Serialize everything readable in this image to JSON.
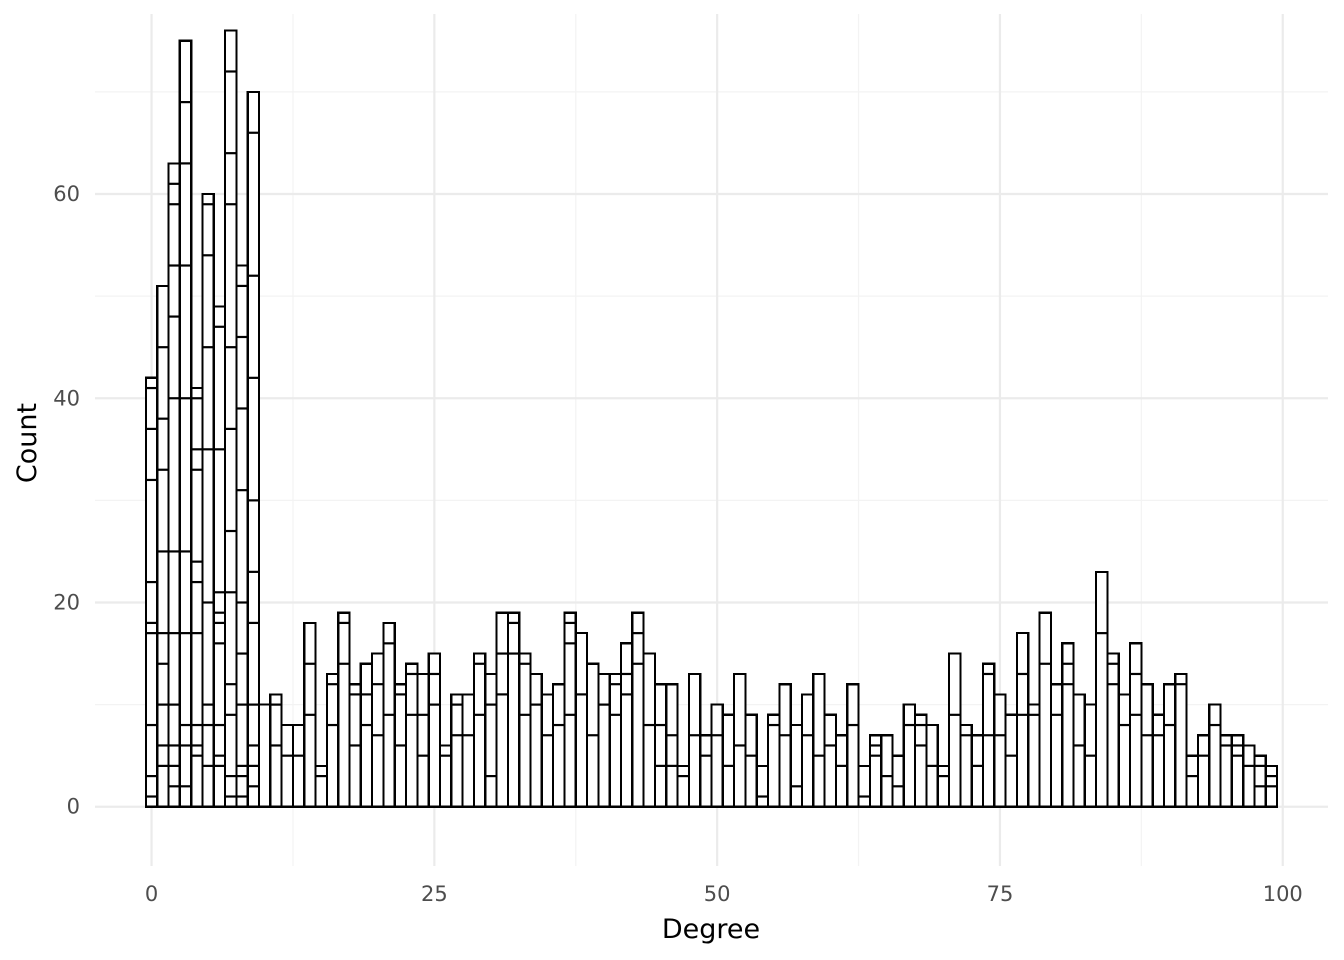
{
  "chart_data": {
    "type": "bar",
    "xlabel": "Degree",
    "ylabel": "Count",
    "x_ticks": [
      0,
      25,
      50,
      75,
      100
    ],
    "y_ticks": [
      0,
      20,
      40,
      60
    ],
    "xlim": [
      -5,
      104
    ],
    "ylim": [
      -6,
      79
    ],
    "grid": true,
    "bin_width": 1,
    "bars": [
      {
        "x": 0,
        "height": 42,
        "segments": [
          1,
          3,
          8,
          17,
          18,
          22,
          32,
          37,
          41
        ]
      },
      {
        "x": 1,
        "height": 51,
        "segments": [
          4,
          6,
          10,
          14,
          17,
          25,
          33,
          38,
          45
        ]
      },
      {
        "x": 2,
        "height": 63,
        "segments": [
          2,
          4,
          6,
          10,
          17,
          25,
          40,
          48,
          53,
          59,
          61
        ]
      },
      {
        "x": 3,
        "height": 75,
        "segments": [
          2,
          6,
          8,
          17,
          25,
          40,
          53,
          63,
          69
        ]
      },
      {
        "x": 4,
        "height": 41,
        "segments": [
          5,
          6,
          8,
          17,
          22,
          24,
          33,
          35,
          40
        ]
      },
      {
        "x": 5,
        "height": 60,
        "segments": [
          4,
          8,
          10,
          20,
          35,
          45,
          54,
          59
        ]
      },
      {
        "x": 6,
        "height": 49,
        "segments": [
          4,
          5,
          8,
          16,
          18,
          19,
          21,
          35,
          47
        ]
      },
      {
        "x": 7,
        "height": 76,
        "segments": [
          1,
          3,
          9,
          12,
          21,
          27,
          37,
          45,
          59,
          64,
          72
        ]
      },
      {
        "x": 8,
        "height": 53,
        "segments": [
          1,
          3,
          4,
          10,
          15,
          20,
          31,
          39,
          46,
          51
        ]
      },
      {
        "x": 9,
        "height": 70,
        "segments": [
          2,
          4,
          6,
          10,
          18,
          23,
          30,
          42,
          52,
          66
        ]
      },
      {
        "x": 10,
        "height": 10,
        "segments": []
      },
      {
        "x": 11,
        "height": 11,
        "segments": [
          6,
          10
        ]
      },
      {
        "x": 12,
        "height": 8,
        "segments": [
          5
        ]
      },
      {
        "x": 13,
        "height": 8,
        "segments": [
          5
        ]
      },
      {
        "x": 14,
        "height": 18,
        "segments": [
          9,
          14
        ]
      },
      {
        "x": 15,
        "height": 4,
        "segments": [
          3
        ]
      },
      {
        "x": 16,
        "height": 13,
        "segments": [
          8,
          12
        ]
      },
      {
        "x": 17,
        "height": 19,
        "segments": [
          14,
          18
        ]
      },
      {
        "x": 18,
        "height": 12,
        "segments": [
          6,
          11
        ]
      },
      {
        "x": 19,
        "height": 14,
        "segments": [
          8,
          11
        ]
      },
      {
        "x": 20,
        "height": 15,
        "segments": [
          7,
          12
        ]
      },
      {
        "x": 21,
        "height": 18,
        "segments": [
          9,
          16
        ]
      },
      {
        "x": 22,
        "height": 12,
        "segments": [
          6,
          11
        ]
      },
      {
        "x": 23,
        "height": 14,
        "segments": [
          9,
          13
        ]
      },
      {
        "x": 24,
        "height": 13,
        "segments": [
          5,
          9
        ]
      },
      {
        "x": 25,
        "height": 15,
        "segments": [
          10,
          13
        ]
      },
      {
        "x": 26,
        "height": 6,
        "segments": [
          5
        ]
      },
      {
        "x": 27,
        "height": 11,
        "segments": [
          7,
          10
        ]
      },
      {
        "x": 28,
        "height": 11,
        "segments": [
          7
        ]
      },
      {
        "x": 29,
        "height": 15,
        "segments": [
          9,
          14
        ]
      },
      {
        "x": 30,
        "height": 13,
        "segments": [
          3,
          10
        ]
      },
      {
        "x": 31,
        "height": 19,
        "segments": [
          11,
          15
        ]
      },
      {
        "x": 32,
        "height": 19,
        "segments": [
          15,
          18
        ]
      },
      {
        "x": 33,
        "height": 15,
        "segments": [
          9,
          14
        ]
      },
      {
        "x": 34,
        "height": 13,
        "segments": [
          10
        ]
      },
      {
        "x": 35,
        "height": 11,
        "segments": [
          7
        ]
      },
      {
        "x": 36,
        "height": 12,
        "segments": [
          8
        ]
      },
      {
        "x": 37,
        "height": 19,
        "segments": [
          9,
          16,
          18
        ]
      },
      {
        "x": 38,
        "height": 17,
        "segments": [
          11
        ]
      },
      {
        "x": 39,
        "height": 14,
        "segments": [
          7
        ]
      },
      {
        "x": 40,
        "height": 13,
        "segments": [
          10
        ]
      },
      {
        "x": 41,
        "height": 13,
        "segments": [
          9,
          12
        ]
      },
      {
        "x": 42,
        "height": 16,
        "segments": [
          11,
          13
        ]
      },
      {
        "x": 43,
        "height": 19,
        "segments": [
          14,
          17
        ]
      },
      {
        "x": 44,
        "height": 15,
        "segments": [
          8
        ]
      },
      {
        "x": 45,
        "height": 12,
        "segments": [
          4,
          8
        ]
      },
      {
        "x": 46,
        "height": 12,
        "segments": [
          4,
          7
        ]
      },
      {
        "x": 47,
        "height": 4,
        "segments": [
          3
        ]
      },
      {
        "x": 48,
        "height": 13,
        "segments": [
          7
        ]
      },
      {
        "x": 49,
        "height": 7,
        "segments": [
          5
        ]
      },
      {
        "x": 50,
        "height": 10,
        "segments": [
          7
        ]
      },
      {
        "x": 51,
        "height": 9,
        "segments": [
          4
        ]
      },
      {
        "x": 52,
        "height": 13,
        "segments": [
          6
        ]
      },
      {
        "x": 53,
        "height": 9,
        "segments": [
          5
        ]
      },
      {
        "x": 54,
        "height": 4,
        "segments": [
          1
        ]
      },
      {
        "x": 55,
        "height": 9,
        "segments": [
          8
        ]
      },
      {
        "x": 56,
        "height": 12,
        "segments": [
          7
        ]
      },
      {
        "x": 57,
        "height": 8,
        "segments": [
          2
        ]
      },
      {
        "x": 58,
        "height": 11,
        "segments": [
          7
        ]
      },
      {
        "x": 59,
        "height": 13,
        "segments": [
          5
        ]
      },
      {
        "x": 60,
        "height": 9,
        "segments": [
          6
        ]
      },
      {
        "x": 61,
        "height": 7,
        "segments": [
          4
        ]
      },
      {
        "x": 62,
        "height": 12,
        "segments": [
          8
        ]
      },
      {
        "x": 63,
        "height": 4,
        "segments": [
          1
        ]
      },
      {
        "x": 64,
        "height": 7,
        "segments": [
          5,
          6
        ]
      },
      {
        "x": 65,
        "height": 7,
        "segments": [
          3
        ]
      },
      {
        "x": 66,
        "height": 5,
        "segments": [
          2
        ]
      },
      {
        "x": 67,
        "height": 10,
        "segments": [
          8
        ]
      },
      {
        "x": 68,
        "height": 9,
        "segments": [
          6,
          8
        ]
      },
      {
        "x": 69,
        "height": 8,
        "segments": [
          4
        ]
      },
      {
        "x": 70,
        "height": 4,
        "segments": [
          3
        ]
      },
      {
        "x": 71,
        "height": 15,
        "segments": [
          9
        ]
      },
      {
        "x": 72,
        "height": 8,
        "segments": [
          7
        ]
      },
      {
        "x": 73,
        "height": 7,
        "segments": [
          4
        ]
      },
      {
        "x": 74,
        "height": 14,
        "segments": [
          7,
          13
        ]
      },
      {
        "x": 75,
        "height": 11,
        "segments": [
          7
        ]
      },
      {
        "x": 76,
        "height": 9,
        "segments": [
          5
        ]
      },
      {
        "x": 77,
        "height": 17,
        "segments": [
          9,
          13
        ]
      },
      {
        "x": 78,
        "height": 10,
        "segments": [
          9
        ]
      },
      {
        "x": 79,
        "height": 19,
        "segments": [
          14
        ]
      },
      {
        "x": 80,
        "height": 12,
        "segments": [
          9
        ]
      },
      {
        "x": 81,
        "height": 16,
        "segments": [
          12,
          14
        ]
      },
      {
        "x": 82,
        "height": 11,
        "segments": [
          6
        ]
      },
      {
        "x": 83,
        "height": 10,
        "segments": [
          5
        ]
      },
      {
        "x": 84,
        "height": 23,
        "segments": [
          17
        ]
      },
      {
        "x": 85,
        "height": 15,
        "segments": [
          12,
          14
        ]
      },
      {
        "x": 86,
        "height": 11,
        "segments": [
          8
        ]
      },
      {
        "x": 87,
        "height": 16,
        "segments": [
          9,
          13
        ]
      },
      {
        "x": 88,
        "height": 12,
        "segments": [
          7
        ]
      },
      {
        "x": 89,
        "height": 9,
        "segments": [
          7
        ]
      },
      {
        "x": 90,
        "height": 12,
        "segments": [
          8
        ]
      },
      {
        "x": 91,
        "height": 13,
        "segments": [
          12
        ]
      },
      {
        "x": 92,
        "height": 5,
        "segments": [
          3
        ]
      },
      {
        "x": 93,
        "height": 7,
        "segments": [
          5
        ]
      },
      {
        "x": 94,
        "height": 10,
        "segments": [
          8
        ]
      },
      {
        "x": 95,
        "height": 7,
        "segments": [
          6
        ]
      },
      {
        "x": 96,
        "height": 7,
        "segments": [
          5,
          6
        ]
      },
      {
        "x": 97,
        "height": 6,
        "segments": [
          4
        ]
      },
      {
        "x": 98,
        "height": 5,
        "segments": [
          2,
          4
        ]
      },
      {
        "x": 99,
        "height": 4,
        "segments": [
          2,
          3
        ]
      }
    ]
  }
}
